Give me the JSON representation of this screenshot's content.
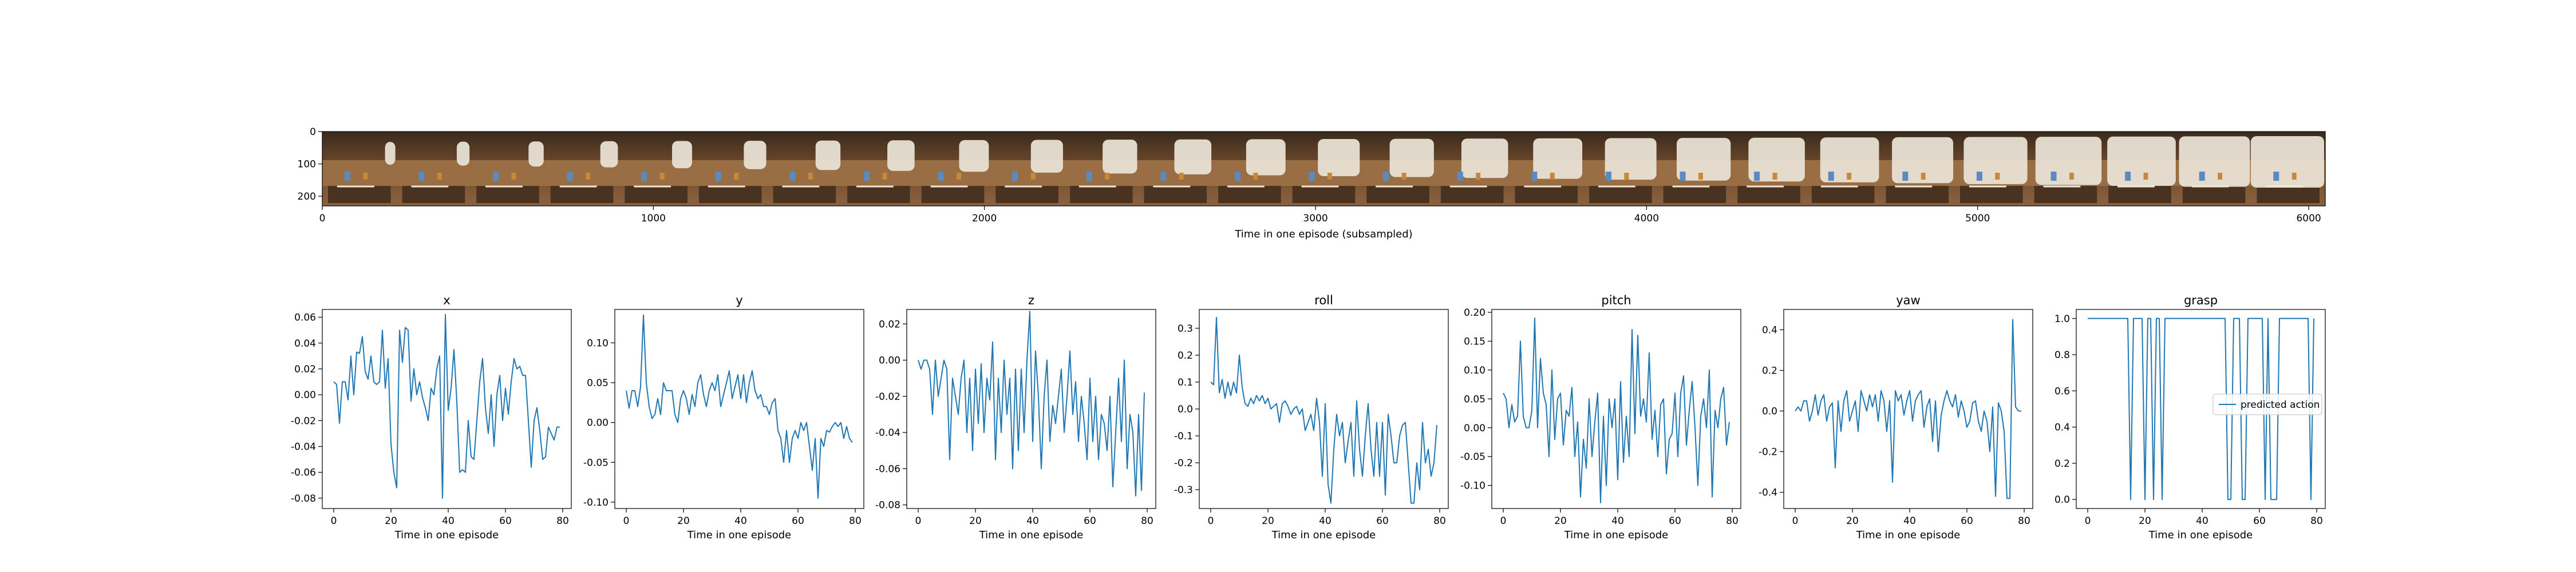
{
  "colors": {
    "line": "#1f77b4",
    "axis": "#000000"
  },
  "strip": {
    "xlabel": "Time in one episode (subsampled)",
    "x_ticks": [
      "0",
      "1000",
      "2000",
      "3000",
      "4000",
      "5000",
      "6000"
    ],
    "y_ticks": [
      "0",
      "100",
      "200"
    ],
    "frames": 27
  },
  "chart_data": [
    {
      "type": "line",
      "title": "x",
      "xlabel": "Time in one episode",
      "ylim": [
        -0.088,
        0.066
      ],
      "x_ticks": [
        "0",
        "20",
        "40",
        "60",
        "80"
      ],
      "y_ticks": [
        "0.06",
        "0.04",
        "0.02",
        "0.00",
        "-0.02",
        "-0.04",
        "-0.06",
        "-0.08"
      ],
      "values": [
        0.01,
        0.008,
        -0.022,
        0.01,
        0.01,
        -0.004,
        0.03,
        0.0,
        0.033,
        0.032,
        0.045,
        0.018,
        0.012,
        0.03,
        0.01,
        0.008,
        0.01,
        0.05,
        0.005,
        0.028,
        -0.038,
        -0.06,
        -0.072,
        0.05,
        0.025,
        0.052,
        0.05,
        -0.005,
        0.02,
        0.0,
        0.01,
        -0.002,
        -0.01,
        -0.02,
        0.005,
        0.0,
        0.02,
        0.03,
        -0.08,
        0.062,
        -0.012,
        0.005,
        0.035,
        -0.005,
        -0.06,
        -0.058,
        -0.06,
        -0.02,
        -0.048,
        -0.05,
        -0.02,
        0.01,
        0.028,
        -0.01,
        -0.03,
        0.0,
        -0.04,
        0.0,
        0.015,
        -0.02,
        0.005,
        -0.015,
        0.01,
        0.028,
        0.02,
        0.022,
        0.015,
        0.015,
        -0.02,
        -0.056,
        -0.02,
        -0.01,
        -0.028,
        -0.05,
        -0.048,
        -0.025,
        -0.03,
        -0.035,
        -0.025,
        -0.025
      ]
    },
    {
      "type": "line",
      "title": "y",
      "xlabel": "Time in one episode",
      "ylim": [
        -0.108,
        0.142
      ],
      "x_ticks": [
        "0",
        "20",
        "40",
        "60",
        "80"
      ],
      "y_ticks": [
        "0.10",
        "0.05",
        "0.00",
        "-0.05",
        "-0.10"
      ],
      "values": [
        0.04,
        0.018,
        0.04,
        0.04,
        0.02,
        0.045,
        0.135,
        0.05,
        0.02,
        0.005,
        0.01,
        0.03,
        0.01,
        0.05,
        0.04,
        0.04,
        0.04,
        0.01,
        0.0,
        0.03,
        0.04,
        0.03,
        0.01,
        0.035,
        0.02,
        0.05,
        0.06,
        0.035,
        0.02,
        0.04,
        0.05,
        0.04,
        0.06,
        0.02,
        0.035,
        0.05,
        0.065,
        0.03,
        0.045,
        0.06,
        0.03,
        0.06,
        0.025,
        0.05,
        0.065,
        0.04,
        0.03,
        0.035,
        0.02,
        0.02,
        0.01,
        0.025,
        0.03,
        -0.01,
        -0.02,
        -0.05,
        -0.01,
        -0.05,
        -0.02,
        -0.01,
        -0.02,
        0.0,
        -0.01,
        0.0,
        -0.03,
        -0.06,
        -0.02,
        -0.095,
        -0.02,
        -0.03,
        -0.01,
        -0.012,
        -0.005,
        0.0,
        -0.005,
        0.0,
        -0.02,
        -0.005,
        -0.02,
        -0.025
      ]
    },
    {
      "type": "line",
      "title": "z",
      "xlabel": "Time in one episode",
      "ylim": [
        -0.082,
        0.028
      ],
      "x_ticks": [
        "0",
        "20",
        "40",
        "60",
        "80"
      ],
      "y_ticks": [
        "0.02",
        "0.00",
        "-0.02",
        "-0.04",
        "-0.06",
        "-0.08"
      ],
      "values": [
        0.0,
        -0.005,
        0.0,
        0.0,
        -0.005,
        -0.03,
        0.0,
        -0.02,
        -0.01,
        0.0,
        -0.005,
        -0.055,
        -0.01,
        -0.02,
        -0.03,
        -0.01,
        0.0,
        -0.04,
        -0.01,
        -0.05,
        -0.005,
        -0.035,
        -0.002,
        -0.04,
        -0.01,
        -0.022,
        0.01,
        -0.055,
        -0.01,
        -0.04,
        0.0,
        -0.03,
        -0.01,
        -0.06,
        -0.005,
        -0.05,
        -0.005,
        -0.04,
        0.0,
        0.027,
        -0.045,
        0.005,
        -0.02,
        -0.06,
        -0.02,
        0.0,
        -0.045,
        -0.025,
        -0.035,
        -0.02,
        -0.005,
        -0.04,
        -0.02,
        0.005,
        -0.03,
        -0.012,
        -0.045,
        -0.02,
        -0.035,
        -0.055,
        -0.01,
        -0.045,
        -0.02,
        -0.055,
        -0.03,
        -0.035,
        -0.05,
        -0.02,
        -0.07,
        -0.04,
        -0.01,
        -0.045,
        0.0,
        -0.06,
        -0.03,
        -0.04,
        -0.075,
        -0.03,
        -0.072,
        -0.018
      ]
    },
    {
      "type": "line",
      "title": "roll",
      "xlabel": "Time in one episode",
      "ylim": [
        -0.37,
        0.37
      ],
      "x_ticks": [
        "0",
        "20",
        "40",
        "60",
        "80"
      ],
      "y_ticks": [
        "0.3",
        "0.2",
        "0.1",
        "0.0",
        "-0.1",
        "-0.2",
        "-0.3"
      ],
      "values": [
        0.1,
        0.09,
        0.34,
        0.06,
        0.11,
        0.04,
        0.1,
        0.05,
        0.1,
        0.06,
        0.2,
        0.08,
        0.02,
        0.01,
        0.04,
        0.02,
        0.05,
        0.03,
        0.05,
        0.02,
        0.04,
        0.0,
        0.01,
        0.02,
        -0.05,
        0.02,
        0.03,
        0.01,
        -0.02,
        0.0,
        0.01,
        -0.02,
        0.0,
        -0.08,
        -0.05,
        -0.02,
        -0.08,
        0.04,
        -0.05,
        -0.25,
        0.02,
        -0.28,
        -0.35,
        -0.15,
        -0.02,
        -0.1,
        -0.05,
        -0.2,
        -0.12,
        -0.05,
        -0.25,
        0.03,
        -0.15,
        -0.25,
        -0.1,
        0.02,
        -0.15,
        -0.25,
        -0.05,
        -0.25,
        -0.05,
        -0.32,
        -0.02,
        -0.1,
        -0.2,
        -0.2,
        -0.1,
        -0.06,
        -0.05,
        -0.2,
        -0.35,
        -0.35,
        -0.2,
        -0.3,
        -0.05,
        -0.2,
        -0.15,
        -0.25,
        -0.2,
        -0.06
      ]
    },
    {
      "type": "line",
      "title": "pitch",
      "xlabel": "Time in one episode",
      "ylim": [
        -0.14,
        0.205
      ],
      "x_ticks": [
        "0",
        "20",
        "40",
        "60",
        "80"
      ],
      "y_ticks": [
        "0.20",
        "0.15",
        "0.10",
        "0.05",
        "0.00",
        "-0.05",
        "-0.10"
      ],
      "values": [
        0.06,
        0.05,
        0.0,
        0.04,
        0.01,
        0.02,
        0.15,
        0.02,
        0.0,
        0.0,
        0.03,
        0.19,
        0.0,
        0.12,
        0.06,
        0.04,
        -0.05,
        0.1,
        -0.02,
        0.05,
        0.06,
        -0.03,
        0.03,
        0.02,
        0.07,
        -0.05,
        0.01,
        -0.12,
        -0.02,
        -0.07,
        0.05,
        -0.05,
        0.01,
        0.06,
        -0.13,
        0.02,
        -0.1,
        0.05,
        0.0,
        0.05,
        -0.09,
        0.08,
        -0.06,
        0.02,
        -0.05,
        0.17,
        -0.01,
        0.16,
        0.02,
        0.05,
        0.01,
        0.13,
        -0.02,
        0.03,
        -0.05,
        0.04,
        0.05,
        -0.08,
        -0.02,
        -0.01,
        0.06,
        -0.05,
        0.06,
        0.09,
        -0.03,
        0.03,
        0.08,
        0.0,
        -0.1,
        0.02,
        0.05,
        0.0,
        0.1,
        -0.12,
        0.03,
        0.0,
        0.05,
        0.07,
        -0.03,
        0.01
      ]
    },
    {
      "type": "line",
      "title": "yaw",
      "xlabel": "Time in one episode",
      "ylim": [
        -0.48,
        0.5
      ],
      "x_ticks": [
        "0",
        "20",
        "40",
        "60",
        "80"
      ],
      "y_ticks": [
        "0.4",
        "0.2",
        "0.0",
        "-0.2",
        "-0.4"
      ],
      "values": [
        0.0,
        0.02,
        0.0,
        0.05,
        0.05,
        -0.05,
        0.0,
        0.08,
        -0.02,
        0.05,
        0.08,
        -0.05,
        0.02,
        0.04,
        -0.28,
        0.05,
        -0.1,
        0.05,
        0.1,
        -0.05,
        0.0,
        0.05,
        -0.1,
        0.1,
        0.05,
        0.0,
        0.08,
        0.02,
        0.08,
        -0.05,
        0.1,
        0.05,
        -0.1,
        0.05,
        -0.35,
        0.1,
        0.05,
        0.08,
        -0.02,
        0.05,
        0.1,
        -0.05,
        0.05,
        0.08,
        0.1,
        -0.08,
        0.02,
        0.06,
        -0.15,
        0.05,
        -0.2,
        -0.02,
        0.05,
        0.1,
        0.05,
        0.02,
        0.08,
        -0.03,
        0.05,
        0.0,
        -0.08,
        -0.05,
        0.04,
        0.05,
        -0.05,
        -0.1,
        0.0,
        -0.05,
        -0.2,
        0.02,
        -0.42,
        0.04,
        0.0,
        -0.1,
        -0.43,
        -0.43,
        0.45,
        0.02,
        0.0,
        0.0
      ]
    },
    {
      "type": "line",
      "title": "grasp",
      "xlabel": "Time in one episode",
      "ylim": [
        -0.05,
        1.05
      ],
      "x_ticks": [
        "0",
        "20",
        "40",
        "60",
        "80"
      ],
      "y_ticks": [
        "1.0",
        "0.8",
        "0.6",
        "0.4",
        "0.2",
        "0.0"
      ],
      "legend": "predicted action",
      "legend_position": "center-right",
      "values": [
        1,
        1,
        1,
        1,
        1,
        1,
        1,
        1,
        1,
        1,
        1,
        1,
        1,
        1,
        1,
        0,
        1,
        1,
        1,
        1,
        0,
        1,
        1,
        0,
        1,
        1,
        0,
        1,
        1,
        1,
        1,
        1,
        1,
        1,
        1,
        1,
        1,
        1,
        1,
        1,
        1,
        1,
        1,
        1,
        1,
        1,
        1,
        1,
        1,
        0,
        0,
        1,
        1,
        1,
        0,
        0,
        1,
        1,
        1,
        1,
        1,
        1,
        0,
        1,
        0,
        0,
        0,
        1,
        1,
        1,
        1,
        1,
        1,
        1,
        1,
        1,
        1,
        1,
        0,
        1
      ]
    }
  ]
}
